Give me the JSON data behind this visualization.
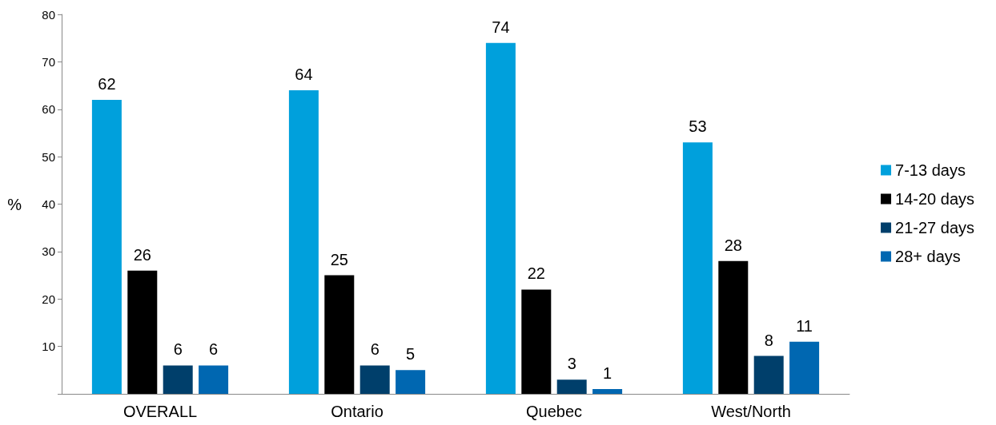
{
  "chart_data": {
    "type": "bar",
    "ylabel": "%",
    "categories": [
      "OVERALL",
      "Ontario",
      "Quebec",
      "West/North"
    ],
    "series": [
      {
        "name": "7-13 days",
        "color": "#00a0dc",
        "values": [
          62,
          64,
          74,
          53
        ]
      },
      {
        "name": "14-20 days",
        "color": "#000000",
        "values": [
          26,
          25,
          22,
          28
        ]
      },
      {
        "name": "21-27 days",
        "color": "#003f6b",
        "values": [
          6,
          6,
          3,
          8
        ]
      },
      {
        "name": "28+ days",
        "color": "#0067b1",
        "values": [
          6,
          5,
          1,
          11
        ]
      }
    ],
    "ylim": [
      0,
      80
    ],
    "yticks": [
      {
        "value": 0,
        "label": null
      },
      10,
      20,
      30,
      40,
      50,
      60,
      70,
      80
    ],
    "grid": false,
    "legend": "right",
    "data_labels": true
  }
}
